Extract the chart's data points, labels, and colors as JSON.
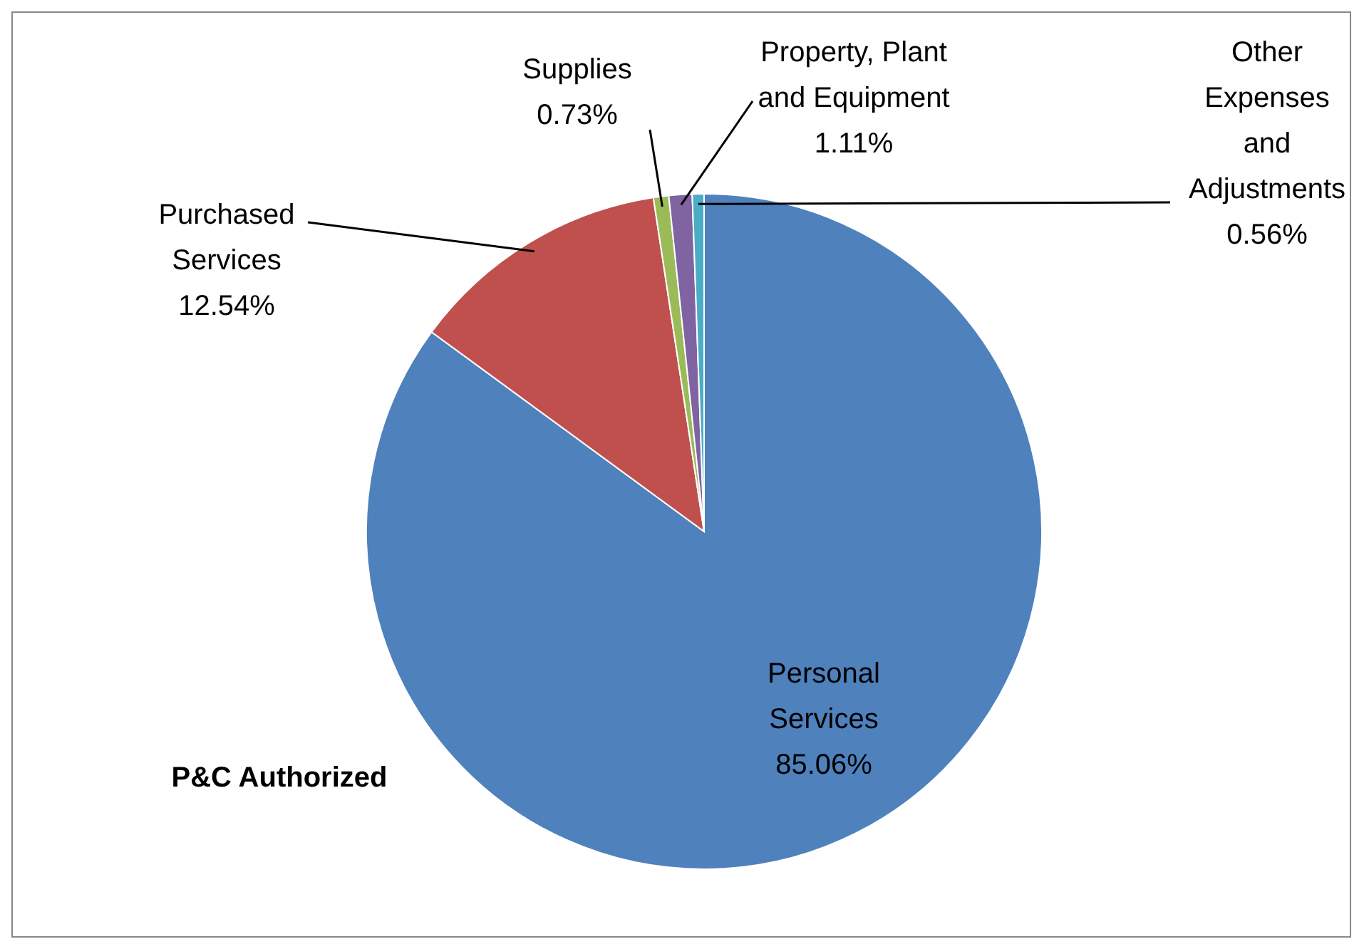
{
  "chart_data": {
    "type": "pie",
    "title": "P&C Authorized",
    "categories": [
      "Personal Services",
      "Purchased Services",
      "Supplies",
      "Property, Plant and Equipment",
      "Other Expenses and Adjustments"
    ],
    "values": [
      85.06,
      12.54,
      0.73,
      1.11,
      0.56
    ],
    "colors": [
      "#4f81bd",
      "#c0504d",
      "#9bbb59",
      "#8064a2",
      "#4bacc6"
    ],
    "value_labels": [
      "85.06%",
      "12.54%",
      "0.73%",
      "1.11%",
      "0.56%"
    ]
  }
}
